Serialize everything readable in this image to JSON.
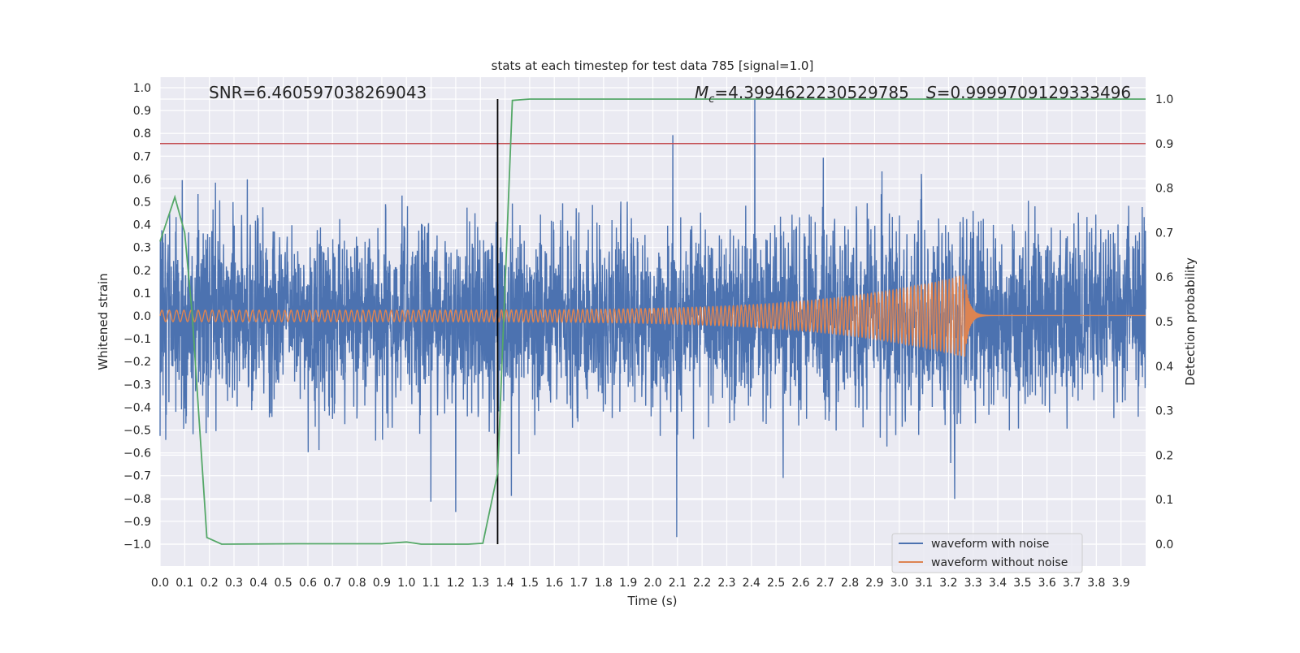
{
  "chart_data": {
    "type": "line",
    "title": "stats at each timestep for test data 785 [signal=1.0]",
    "xlabel": "Time (s)",
    "ylabel": "Whitened strain",
    "ylabel_right": "Detection probability",
    "xlim": [
      0.0,
      4.0
    ],
    "ylim": [
      -1.1,
      1.05
    ],
    "ylim_right": [
      -0.05,
      1.05
    ],
    "grid": true,
    "legend_position": "bottom-right",
    "x_ticks": [
      "0.0",
      "0.1",
      "0.2",
      "0.3",
      "0.4",
      "0.5",
      "0.6",
      "0.7",
      "0.8",
      "0.9",
      "1.0",
      "1.1",
      "1.2",
      "1.3",
      "1.4",
      "1.5",
      "1.6",
      "1.7",
      "1.8",
      "1.9",
      "2.0",
      "2.1",
      "2.2",
      "2.3",
      "2.4",
      "2.5",
      "2.6",
      "2.7",
      "2.8",
      "2.9",
      "3.0",
      "3.1",
      "3.2",
      "3.3",
      "3.4",
      "3.5",
      "3.6",
      "3.7",
      "3.8",
      "3.9"
    ],
    "y_ticks": [
      "1.0",
      "0.9",
      "0.8",
      "0.7",
      "0.6",
      "0.5",
      "0.4",
      "0.3",
      "0.2",
      "0.1",
      "0.0",
      "−0.1",
      "−0.2",
      "−0.3",
      "−0.4",
      "−0.5",
      "−0.6",
      "−0.7",
      "−0.8",
      "−0.9",
      "−1.0"
    ],
    "y_ticks_right": [
      "1.0",
      "0.9",
      "0.8",
      "0.7",
      "0.6",
      "0.5",
      "0.4",
      "0.3",
      "0.2",
      "0.1",
      "0.0"
    ],
    "annotations": {
      "snr": "SNR=6.460597038269043",
      "mc_symbol": "M",
      "mc_sub": "c",
      "mc_value": "=4.3994622230529785",
      "s_symbol": "S",
      "s_value": "=0.9999709129333496"
    },
    "series": [
      {
        "name": "waveform with noise",
        "axis": "left",
        "color": "#4c72b0",
        "amplitude_range": [
          -1.0,
          0.95
        ]
      },
      {
        "name": "waveform without noise",
        "axis": "left",
        "color": "#dd8452",
        "chirp_amplitude_start": 0.025,
        "chirp_amplitude_peak": 0.18,
        "merger_time": 3.27
      },
      {
        "name": "detection probability",
        "axis": "right",
        "color": "#55a868",
        "x": [
          0.0,
          0.06,
          0.1,
          0.13,
          0.19,
          0.25,
          0.55,
          0.9,
          1.0,
          1.06,
          1.25,
          1.31,
          1.37,
          1.43,
          1.5,
          4.0
        ],
        "y": [
          0.68,
          0.78,
          0.7,
          0.52,
          0.015,
          0.0,
          0.001,
          0.001,
          0.005,
          0.0,
          0.0,
          0.002,
          0.16,
          0.997,
          1.0,
          1.0
        ]
      }
    ],
    "threshold": {
      "axis": "right",
      "value": 0.9,
      "color": "#c44e52"
    },
    "marker_time": {
      "value": 1.37,
      "color": "#000000"
    }
  }
}
